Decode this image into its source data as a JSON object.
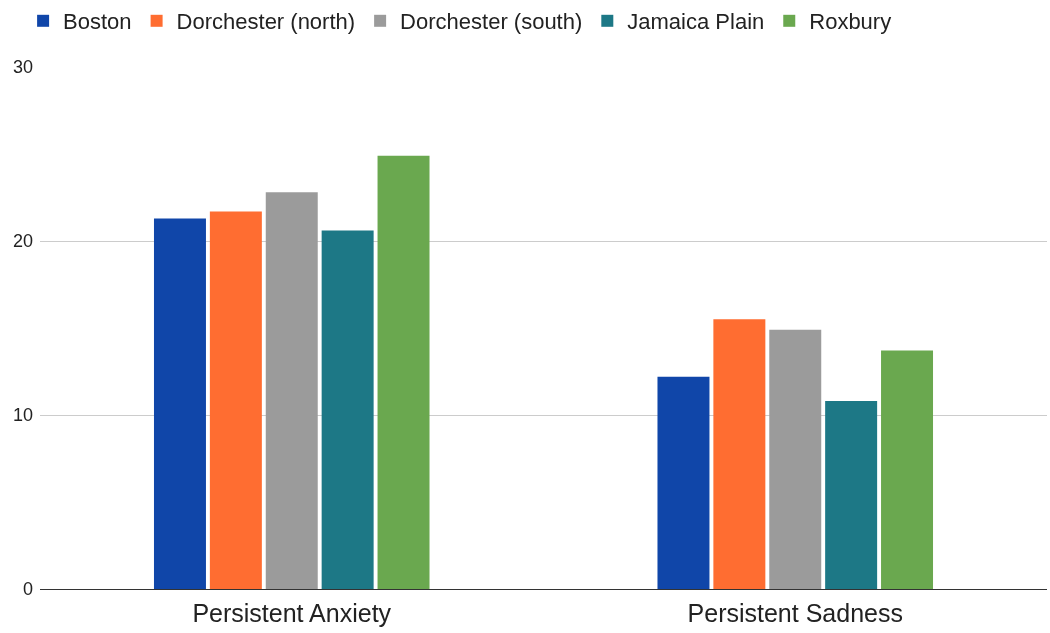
{
  "chart_data": {
    "type": "bar",
    "categories": [
      "Persistent Anxiety",
      "Persistent Sadness"
    ],
    "series": [
      {
        "name": "Boston",
        "color": "#1046a9",
        "values": [
          21.3,
          12.2
        ]
      },
      {
        "name": "Dorchester (north)",
        "color": "#ff6d31",
        "values": [
          21.7,
          15.5
        ]
      },
      {
        "name": "Dorchester (south)",
        "color": "#9b9b9b",
        "values": [
          22.8,
          14.9
        ]
      },
      {
        "name": "Jamaica Plain",
        "color": "#1d7886",
        "values": [
          20.6,
          10.8
        ]
      },
      {
        "name": "Roxbury",
        "color": "#6aa84f",
        "values": [
          24.9,
          13.7
        ]
      }
    ],
    "ylim": [
      0,
      30
    ],
    "yticks": [
      0,
      10,
      20,
      30
    ],
    "grid": "y",
    "legend": "top"
  }
}
